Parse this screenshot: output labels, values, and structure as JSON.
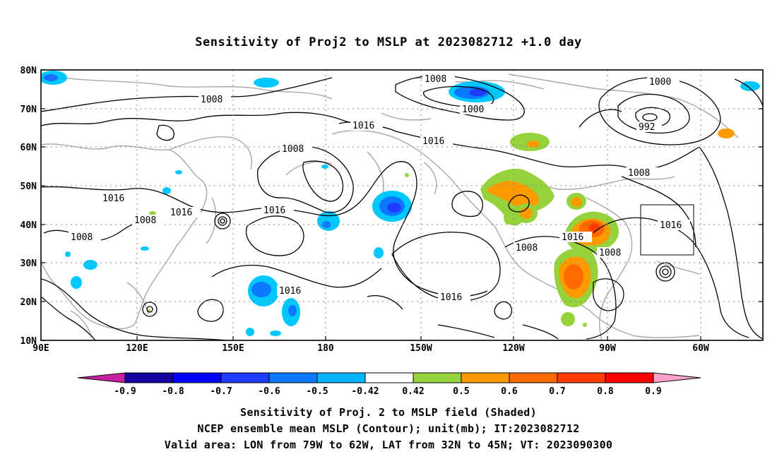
{
  "title": "Sensitivity of Proj2 to MSLP at 2023082712 +1.0 day",
  "map": {
    "lon_labels": [
      "90E",
      "120E",
      "150E",
      "180",
      "150W",
      "120W",
      "90W",
      "60W"
    ],
    "lat_labels": [
      "80N",
      "70N",
      "60N",
      "50N",
      "40N",
      "30N",
      "20N",
      "10N"
    ],
    "lon_range": [
      90,
      315
    ],
    "lat_range": [
      10,
      80
    ],
    "valid_box": {
      "lon": [
        281,
        298
      ],
      "lat": [
        32,
        45
      ]
    },
    "contour_labels": [
      "1008",
      "1008",
      "1008",
      "1008",
      "1008",
      "1008",
      "1008",
      "1008",
      "1016",
      "1016",
      "1016",
      "1016",
      "1016",
      "1016",
      "1016",
      "1016",
      "1016",
      "1000",
      "1000",
      "992"
    ],
    "colors": {
      "negative": "#00c8ff",
      "deep_negative": "#1e6eff",
      "positive": "#9cd23c",
      "orange": "#ff9a00",
      "red": "#ff3a00"
    }
  },
  "colorbar": {
    "labels": [
      "-0.9",
      "-0.8",
      "-0.7",
      "-0.6",
      "-0.5",
      "-0.42",
      "0.42",
      "0.5",
      "0.6",
      "0.7",
      "0.8",
      "0.9"
    ],
    "colors": [
      "#1400a0",
      "#0000ff",
      "#1e3cff",
      "#0a78ff",
      "#00b4ff",
      "#ffffff",
      "#96d23c",
      "#ff9b00",
      "#ff6a00",
      "#ff3c00",
      "#ff0000"
    ],
    "left_arrow_color": "#c81ea0",
    "right_arrow_color": "#ffa0c8"
  },
  "captions": [
    "Sensitivity of Proj. 2 to MSLP field (Shaded)",
    "NCEP ensemble mean MSLP (Contour); unit(mb); IT:2023082712",
    "Valid area: LON from 79W to 62W, LAT from 32N to 45N; VT: 2023090300"
  ]
}
